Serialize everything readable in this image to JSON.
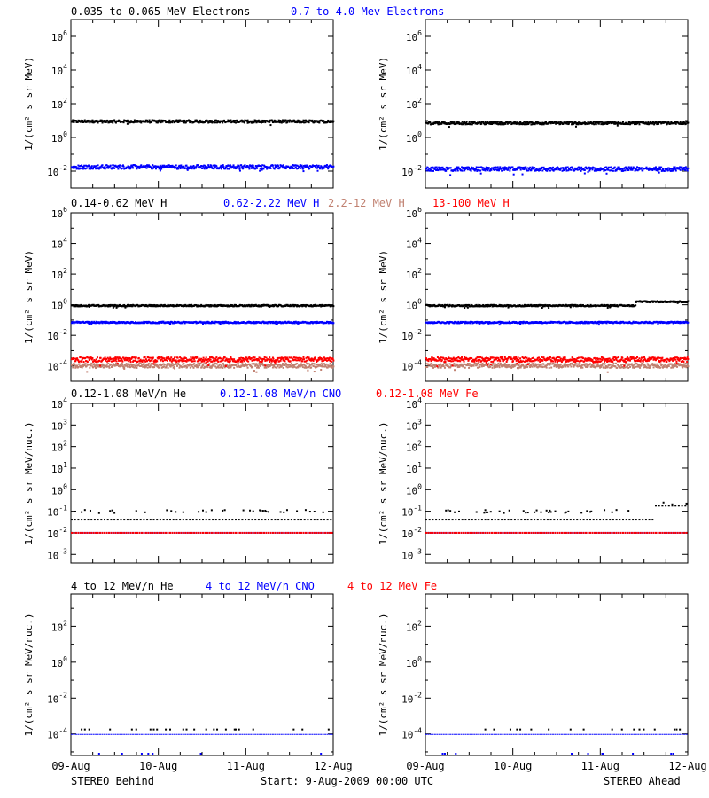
{
  "colors": {
    "black": "#000000",
    "blue": "#0000ff",
    "tan": "#c08070",
    "red": "#ff0000"
  },
  "headers": [
    [
      {
        "text": "0.035 to 0.065 MeV Electrons",
        "color": "#000000"
      },
      {
        "text": "0.7 to 4.0 Mev Electrons",
        "color": "#0000ff"
      }
    ],
    [
      {
        "text": "0.14-0.62 MeV H",
        "color": "#000000"
      },
      {
        "text": "0.62-2.22 MeV H",
        "color": "#0000ff"
      },
      {
        "text": "2.2-12 MeV H",
        "color": "#c08070"
      },
      {
        "text": "13-100 MeV H",
        "color": "#ff0000"
      }
    ],
    [
      {
        "text": "0.12-1.08 MeV/n He",
        "color": "#000000"
      },
      {
        "text": "0.12-1.08 MeV/n CNO",
        "color": "#0000ff"
      },
      {
        "text": "0.12-1.08 MeV Fe",
        "color": "#ff0000"
      }
    ],
    [
      {
        "text": "4 to 12 MeV/n He",
        "color": "#000000"
      },
      {
        "text": "4 to 12 MeV/n CNO",
        "color": "#0000ff"
      },
      {
        "text": "4 to 12 MeV Fe",
        "color": "#ff0000"
      }
    ]
  ],
  "ylabels": {
    "flux": "1/(cm² s sr MeV)",
    "flux_nuc": "1/(cm² s sr MeV/nuc.)"
  },
  "footer": {
    "left": "STEREO Behind",
    "center": "Start:  9-Aug-2009 00:00 UTC",
    "right": "STEREO Ahead"
  },
  "chart_data": [
    {
      "type": "scatter",
      "row": 0,
      "spacecraft": "STEREO Behind",
      "log_y": true,
      "ylabel": "1/(cm² s sr MeV)",
      "ylim_exp": [
        -3,
        7
      ],
      "ytick_exponents": [
        -2,
        0,
        2,
        4,
        6
      ],
      "x_ticks": [
        "09-Aug",
        "10-Aug",
        "11-Aug",
        "12-Aug"
      ],
      "series": [
        {
          "name": "0.035 to 0.065 MeV Electrons",
          "color": "#000000",
          "level": 10,
          "spread": 0.08
        },
        {
          "name": "0.7 to 4.0 Mev Electrons",
          "color": "#0000ff",
          "level": 0.02,
          "spread": 0.12
        }
      ]
    },
    {
      "type": "scatter",
      "row": 0,
      "spacecraft": "STEREO Ahead",
      "log_y": true,
      "ylabel": "1/(cm² s sr MeV)",
      "ylim_exp": [
        -3,
        7
      ],
      "ytick_exponents": [
        -2,
        0,
        2,
        4,
        6
      ],
      "x_ticks": [
        "09-Aug",
        "10-Aug",
        "11-Aug",
        "12-Aug"
      ],
      "series": [
        {
          "name": "0.035 to 0.065 MeV Electrons",
          "color": "#000000",
          "level": 8,
          "spread": 0.08
        },
        {
          "name": "0.7 to 4.0 Mev Electrons",
          "color": "#0000ff",
          "level": 0.015,
          "spread": 0.12
        }
      ]
    },
    {
      "type": "scatter",
      "row": 1,
      "spacecraft": "STEREO Behind",
      "log_y": true,
      "ylabel": "1/(cm² s sr MeV)",
      "ylim_exp": [
        -5,
        6
      ],
      "ytick_exponents": [
        -4,
        -2,
        0,
        2,
        4,
        6
      ],
      "x_ticks": [
        "09-Aug",
        "10-Aug",
        "11-Aug",
        "12-Aug"
      ],
      "series": [
        {
          "name": "0.14-0.62 MeV H",
          "color": "#000000",
          "level": 1.0,
          "spread": 0.05
        },
        {
          "name": "0.62-2.22 MeV H",
          "color": "#0000ff",
          "level": 0.08,
          "spread": 0.05
        },
        {
          "name": "2.2-12 MeV H",
          "color": "#c08070",
          "level": 0.00012,
          "spread": 0.15
        },
        {
          "name": "13-100 MeV H",
          "color": "#ff0000",
          "level": 0.0003,
          "spread": 0.15
        }
      ]
    },
    {
      "type": "scatter",
      "row": 1,
      "spacecraft": "STEREO Ahead",
      "log_y": true,
      "ylabel": "1/(cm² s sr MeV)",
      "ylim_exp": [
        -5,
        6
      ],
      "ytick_exponents": [
        -4,
        -2,
        0,
        2,
        4,
        6
      ],
      "x_ticks": [
        "09-Aug",
        "10-Aug",
        "11-Aug",
        "12-Aug"
      ],
      "series": [
        {
          "name": "0.14-0.62 MeV H",
          "color": "#000000",
          "level": 1.0,
          "spread": 0.05,
          "rise_after_day": 2.4,
          "rise_level": 1.8
        },
        {
          "name": "0.62-2.22 MeV H",
          "color": "#0000ff",
          "level": 0.08,
          "spread": 0.05
        },
        {
          "name": "2.2-12 MeV H",
          "color": "#c08070",
          "level": 0.00012,
          "spread": 0.15
        },
        {
          "name": "13-100 MeV H",
          "color": "#ff0000",
          "level": 0.0003,
          "spread": 0.15
        }
      ]
    },
    {
      "type": "scatter",
      "row": 2,
      "spacecraft": "STEREO Behind",
      "log_y": true,
      "ylabel": "1/(cm² s sr MeV/nuc.)",
      "ylim_exp": [
        -3.4,
        4
      ],
      "ytick_exponents": [
        -3,
        -2,
        -1,
        0,
        1,
        2,
        3,
        4
      ],
      "x_ticks": [
        "09-Aug",
        "10-Aug",
        "11-Aug",
        "12-Aug"
      ],
      "series": [
        {
          "name": "0.12-1.08 MeV/n He",
          "color": "#000000",
          "level": 0.045,
          "upper": 0.1
        },
        {
          "name": "0.12-1.08 MeV/n CNO",
          "color": "#0000ff",
          "level": 0.011
        },
        {
          "name": "0.12-1.08 MeV Fe",
          "color": "#ff0000",
          "level": 0.011
        }
      ]
    },
    {
      "type": "scatter",
      "row": 2,
      "spacecraft": "STEREO Ahead",
      "log_y": true,
      "ylabel": "1/(cm² s sr MeV/nuc.)",
      "ylim_exp": [
        -3.4,
        4
      ],
      "ytick_exponents": [
        -3,
        -2,
        -1,
        0,
        1,
        2,
        3,
        4
      ],
      "x_ticks": [
        "09-Aug",
        "10-Aug",
        "11-Aug",
        "12-Aug"
      ],
      "series": [
        {
          "name": "0.12-1.08 MeV/n He",
          "color": "#000000",
          "level": 0.045,
          "upper": 0.1,
          "rise_after_day": 2.6,
          "rise_level": 0.2
        },
        {
          "name": "0.12-1.08 MeV/n CNO",
          "color": "#0000ff",
          "level": 0.011
        },
        {
          "name": "0.12-1.08 MeV Fe",
          "color": "#ff0000",
          "level": 0.011
        }
      ]
    },
    {
      "type": "scatter",
      "row": 3,
      "spacecraft": "STEREO Behind",
      "log_y": true,
      "ylabel": "1/(cm² s sr MeV/nuc.)",
      "ylim_exp": [
        -5.2,
        3.8
      ],
      "ytick_exponents": [
        -4,
        -2,
        0,
        2
      ],
      "x_ticks": [
        "09-Aug",
        "10-Aug",
        "11-Aug",
        "12-Aug"
      ],
      "series": [
        {
          "name": "4 to 12 MeV/n He",
          "color": "#000000",
          "level": 0.0002
        },
        {
          "name": "4 to 12 MeV/n CNO",
          "color": "#0000ff",
          "level": 0.0001
        }
      ]
    },
    {
      "type": "scatter",
      "row": 3,
      "spacecraft": "STEREO Ahead",
      "log_y": true,
      "ylabel": "1/(cm² s sr MeV/nuc.)",
      "ylim_exp": [
        -5.2,
        3.8
      ],
      "ytick_exponents": [
        -4,
        -2,
        0,
        2
      ],
      "x_ticks": [
        "09-Aug",
        "10-Aug",
        "11-Aug",
        "12-Aug"
      ],
      "series": [
        {
          "name": "4 to 12 MeV/n He",
          "color": "#000000",
          "level": 0.0002
        },
        {
          "name": "4 to 12 MeV/n CNO",
          "color": "#0000ff",
          "level": 0.0001
        }
      ]
    }
  ]
}
